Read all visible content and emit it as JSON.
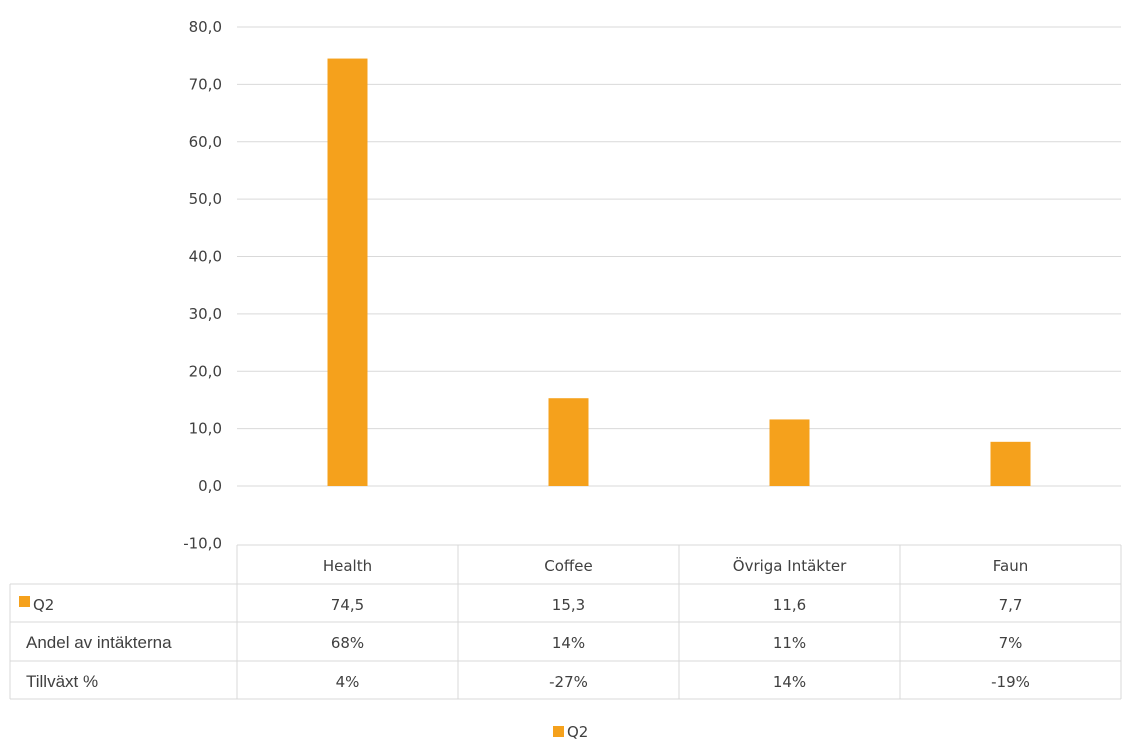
{
  "chart_data": {
    "type": "bar",
    "categories": [
      "Health",
      "Coffee",
      "Övriga Intäkter",
      "Faun"
    ],
    "series": [
      {
        "name": "Q2",
        "values": [
          74.5,
          15.3,
          11.6,
          7.7
        ],
        "color": "#F5A11C"
      }
    ],
    "ylim": [
      -10,
      80
    ],
    "yticks": [
      "-10,0",
      "0,0",
      "10,0",
      "20,0",
      "30,0",
      "40,0",
      "50,0",
      "60,0",
      "70,0",
      "80,0"
    ],
    "grid": true,
    "data_table": {
      "rows": [
        {
          "label": "Q2",
          "marker": true,
          "values": [
            "74,5",
            "15,3",
            "11,6",
            "7,7"
          ]
        },
        {
          "label": "Andel av intäkterna",
          "marker": false,
          "values": [
            "68%",
            "14%",
            "11%",
            "7%"
          ]
        },
        {
          "label": "Tillväxt %",
          "marker": false,
          "values": [
            "4%",
            "-27%",
            "14%",
            "-19%"
          ]
        }
      ]
    },
    "legend": {
      "position": "bottom",
      "entries": [
        "Q2"
      ]
    }
  }
}
